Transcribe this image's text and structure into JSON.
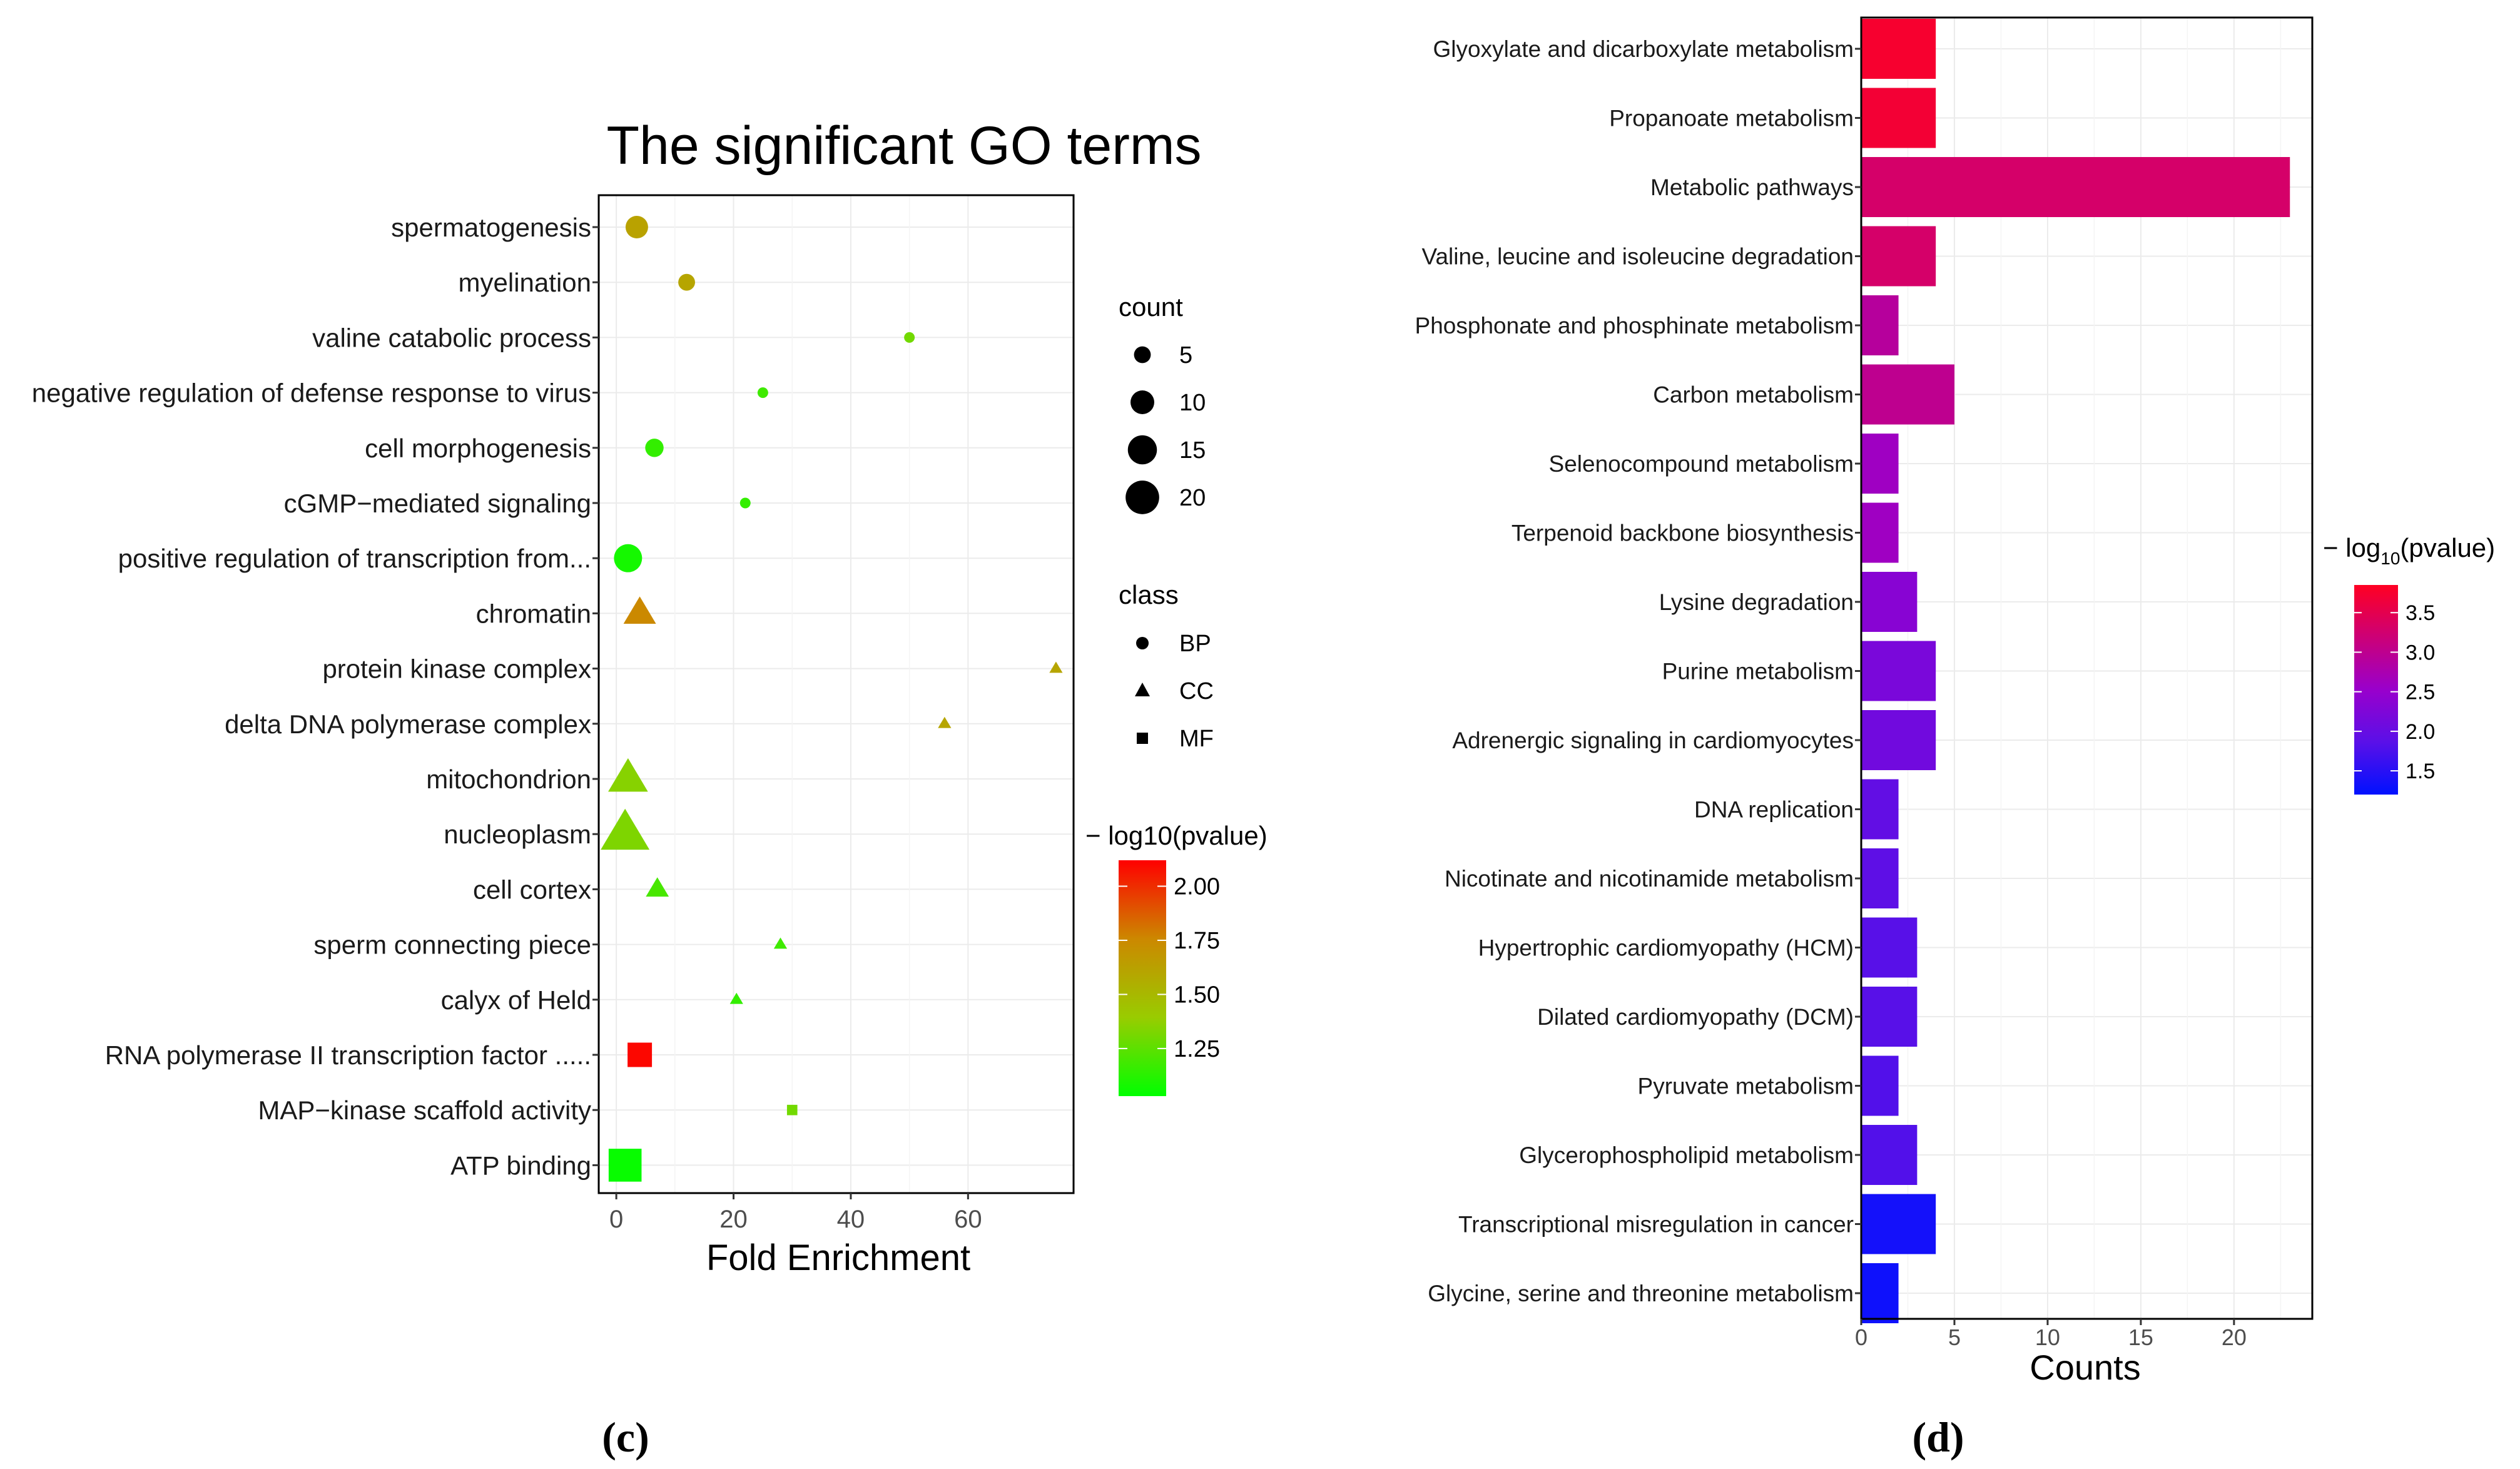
{
  "chart_data": [
    {
      "type": "scatter",
      "panel_label": "(c)",
      "title": "The significant GO terms",
      "xlabel": "Fold Enrichment",
      "ylabel": "",
      "xlim": [
        -3,
        78
      ],
      "x_ticks": [
        0,
        20,
        40,
        60
      ],
      "grid": true,
      "legend_position": "right",
      "categories": [
        "spermatogenesis",
        "myelination",
        "valine catabolic process",
        "negative regulation of defense response to virus",
        "cell morphogenesis",
        "cGMP−mediated signaling",
        "positive regulation of transcription from...",
        "chromatin",
        "protein kinase complex",
        "delta DNA polymerase complex",
        "mitochondrion",
        "nucleoplasm",
        "cell cortex",
        "sperm connecting piece",
        "calyx of Held",
        "RNA polymerase II transcription factor .....",
        "MAP−kinase scaffold activity",
        "ATP binding"
      ],
      "points": [
        {
          "term": "spermatogenesis",
          "fold_enrichment": 3.5,
          "count": 9,
          "class": "BP",
          "neg_log10_pvalue": 1.62
        },
        {
          "term": "myelination",
          "fold_enrichment": 12,
          "count": 5,
          "class": "BP",
          "neg_log10_pvalue": 1.6
        },
        {
          "term": "valine catabolic process",
          "fold_enrichment": 50,
          "count": 2,
          "class": "BP",
          "neg_log10_pvalue": 1.3
        },
        {
          "term": "negative regulation of defense response to virus",
          "fold_enrichment": 25,
          "count": 2,
          "class": "BP",
          "neg_log10_pvalue": 1.18
        },
        {
          "term": "cell morphogenesis",
          "fold_enrichment": 6.5,
          "count": 6,
          "class": "BP",
          "neg_log10_pvalue": 1.15
        },
        {
          "term": "cGMP−mediated signaling",
          "fold_enrichment": 22,
          "count": 2,
          "class": "BP",
          "neg_log10_pvalue": 1.15
        },
        {
          "term": "positive regulation of transcription from...",
          "fold_enrichment": 2,
          "count": 14,
          "class": "BP",
          "neg_log10_pvalue": 1.08
        },
        {
          "term": "chromatin",
          "fold_enrichment": 4,
          "count": 12,
          "class": "CC",
          "neg_log10_pvalue": 1.75
        },
        {
          "term": "protein kinase complex",
          "fold_enrichment": 75,
          "count": 2,
          "class": "CC",
          "neg_log10_pvalue": 1.6
        },
        {
          "term": "delta DNA polymerase complex",
          "fold_enrichment": 56,
          "count": 2,
          "class": "CC",
          "neg_log10_pvalue": 1.6
        },
        {
          "term": "mitochondrion",
          "fold_enrichment": 2,
          "count": 18,
          "class": "CC",
          "neg_log10_pvalue": 1.35
        },
        {
          "term": "nucleoplasm",
          "fold_enrichment": 1.5,
          "count": 27,
          "class": "CC",
          "neg_log10_pvalue": 1.33
        },
        {
          "term": "cell cortex",
          "fold_enrichment": 7,
          "count": 6,
          "class": "CC",
          "neg_log10_pvalue": 1.2
        },
        {
          "term": "sperm connecting piece",
          "fold_enrichment": 28,
          "count": 2,
          "class": "CC",
          "neg_log10_pvalue": 1.18
        },
        {
          "term": "calyx of Held",
          "fold_enrichment": 20.5,
          "count": 2,
          "class": "CC",
          "neg_log10_pvalue": 1.15
        },
        {
          "term": "RNA polymerase II transcription factor .....",
          "fold_enrichment": 4,
          "count": 11,
          "class": "MF",
          "neg_log10_pvalue": 2.1
        },
        {
          "term": "MAP−kinase scaffold activity",
          "fold_enrichment": 30,
          "count": 2,
          "class": "MF",
          "neg_log10_pvalue": 1.3
        },
        {
          "term": "ATP binding",
          "fold_enrichment": 1.5,
          "count": 20,
          "class": "MF",
          "neg_log10_pvalue": 1.05
        }
      ],
      "legend_count": {
        "title": "count",
        "values": [
          5,
          10,
          15,
          20
        ],
        "labels": [
          "5",
          "10",
          "15",
          "20"
        ]
      },
      "legend_class": {
        "title": "class",
        "labels": [
          "BP",
          "CC",
          "MF"
        ]
      },
      "legend_color": {
        "title": "− log10(pvalue)",
        "range": [
          1.03,
          2.12
        ],
        "tick_values": [
          2.0,
          1.75,
          1.5,
          1.25
        ],
        "tick_labels": [
          "2.00",
          "1.75",
          "1.50",
          "1.25"
        ],
        "colors": [
          "#ff0000",
          "#cc8800",
          "#99cc00",
          "#00ff00"
        ]
      }
    },
    {
      "type": "bar",
      "orientation": "horizontal",
      "panel_label": "(d)",
      "title": "",
      "xlabel": "Counts",
      "ylabel": "",
      "xlim": [
        0,
        24.2
      ],
      "x_ticks": [
        0,
        5,
        10,
        15,
        20
      ],
      "grid": true,
      "legend_position": "right",
      "categories": [
        "Glyoxylate and dicarboxylate metabolism",
        "Propanoate metabolism",
        "Metabolic pathways",
        "Valine, leucine and isoleucine degradation",
        "Phosphonate and phosphinate metabolism",
        "Carbon metabolism",
        "Selenocompound metabolism",
        "Terpenoid backbone biosynthesis",
        "Lysine degradation",
        "Purine metabolism",
        "Adrenergic signaling in cardiomyocytes",
        "DNA replication",
        "Nicotinate and nicotinamide metabolism",
        "Hypertrophic cardiomyopathy (HCM)",
        "Dilated cardiomyopathy (DCM)",
        "Pyruvate metabolism",
        "Glycerophospholipid metabolism",
        "Transcriptional misregulation in cancer",
        "Glycine, serine and threonine metabolism"
      ],
      "values": [
        4,
        4,
        23,
        4,
        2,
        5,
        2,
        2,
        3,
        4,
        4,
        2,
        2,
        3,
        3,
        2,
        3,
        4,
        2
      ],
      "neg_log10_pvalue": [
        3.75,
        3.7,
        3.3,
        3.3,
        2.9,
        3.0,
        2.6,
        2.6,
        2.35,
        2.2,
        2.1,
        1.95,
        1.9,
        1.85,
        1.85,
        1.8,
        1.8,
        1.35,
        1.3
      ],
      "legend_color": {
        "title_prefix": "− log",
        "title_subscript": "10",
        "title_suffix": "(pvalue)",
        "range": [
          1.2,
          3.85
        ],
        "tick_values": [
          3.5,
          3.0,
          2.5,
          2.0,
          1.5
        ],
        "tick_labels": [
          "3.5",
          "3.0",
          "2.5",
          "2.0",
          "1.5"
        ],
        "colors": [
          "#ff0022",
          "#cc0077",
          "#9900cc",
          "#5a10e8",
          "#0011ff"
        ]
      }
    }
  ]
}
